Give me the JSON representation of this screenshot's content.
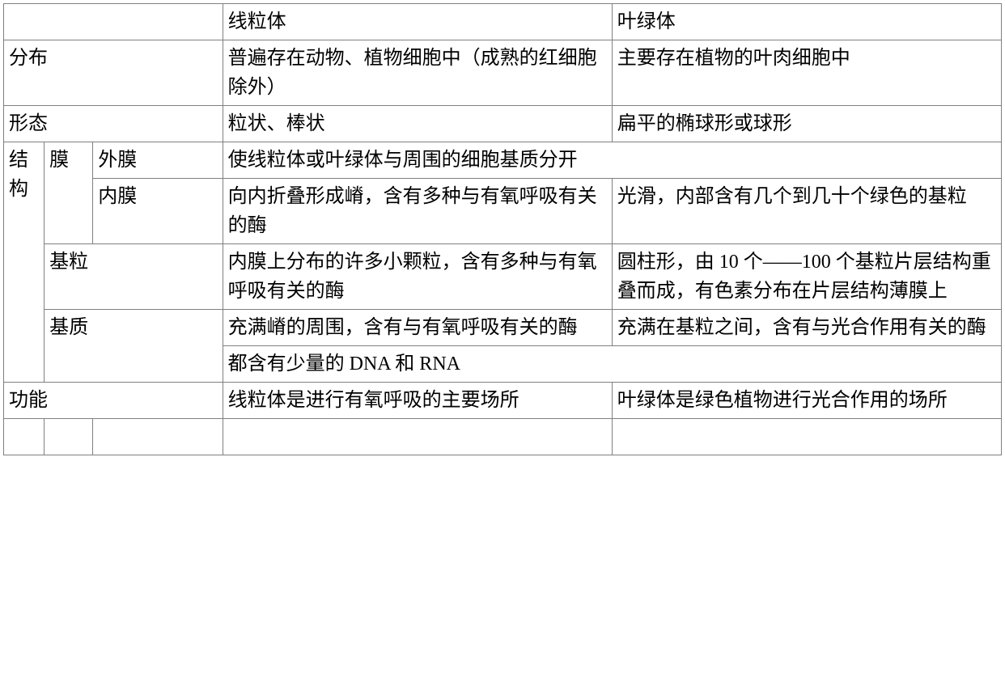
{
  "header": {
    "col1": "线粒体",
    "col2": "叶绿体"
  },
  "distribution": {
    "label": "分布",
    "col1": "普遍存在动物、植物细胞中（成熟的红细胞除外）",
    "col2": "主要存在植物的叶肉细胞中"
  },
  "shape": {
    "label": "形态",
    "col1": "粒状、棒状",
    "col2": "扁平的椭球形或球形"
  },
  "structure": {
    "label": "结构",
    "membrane": {
      "label": "膜",
      "outer": {
        "label": "外膜",
        "merged": "使线粒体或叶绿体与周围的细胞基质分开"
      },
      "inner": {
        "label": "内膜",
        "col1": "向内折叠形成嵴，含有多种与有氧呼吸有关的酶",
        "col2": "光滑，内部含有几个到几十个绿色的基粒"
      }
    },
    "granule": {
      "label": "基粒",
      "col1": "内膜上分布的许多小颗粒，含有多种与有氧呼吸有关的酶",
      "col2": "圆柱形，由 10 个——100 个基粒片层结构重叠而成，有色素分布在片层结构薄膜上"
    },
    "matrix": {
      "label": "基质",
      "col1": "充满嵴的周围，含有与有氧呼吸有关的酶",
      "col2": "充满在基粒之间，含有与光合作用有关的酶",
      "merged": "都含有少量的 DNA 和 RNA"
    }
  },
  "function": {
    "label": "功能",
    "col1": "线粒体是进行有氧呼吸的主要场所",
    "col2": "叶绿体是绿色植物进行光合作用的场所"
  }
}
